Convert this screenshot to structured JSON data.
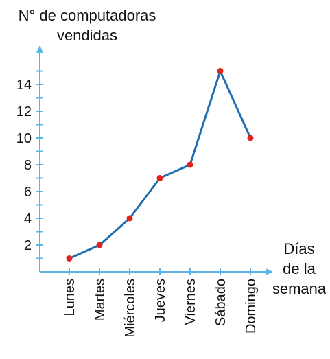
{
  "chart_data": {
    "type": "line",
    "ylabel_lines": [
      "N° de computadoras",
      "vendidas"
    ],
    "xlabel_lines": [
      "Días",
      "de la",
      "semana"
    ],
    "categories": [
      "Lunes",
      "Martes",
      "Miércoles",
      "Jueves",
      "Viernes",
      "Sábado",
      "Domingo"
    ],
    "values": [
      1,
      2,
      4,
      7,
      8,
      15,
      10
    ],
    "y_ticks": [
      2,
      4,
      6,
      8,
      10,
      12,
      14
    ],
    "ylim": [
      0,
      16
    ],
    "grid": false,
    "colors": {
      "axis": "#5bb4e6",
      "line": "#1f6db3",
      "point": "#e2231a"
    }
  }
}
